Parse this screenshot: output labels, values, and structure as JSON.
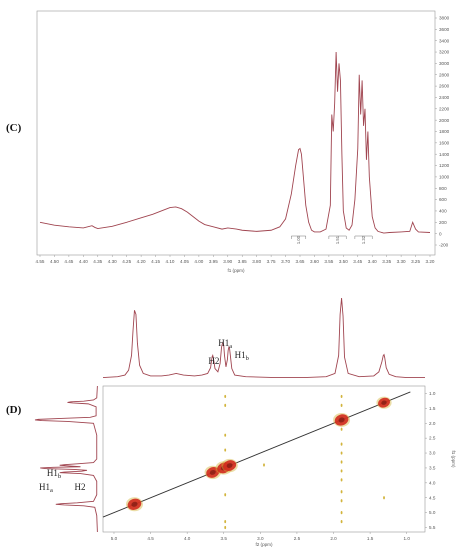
{
  "panels": {
    "c_label": "(C)",
    "d_label": "(D)"
  },
  "colors": {
    "spectrum": "#a04550",
    "axis": "#9a9a9a",
    "diag_line": "#333333",
    "peak_fill": "#d22a1e",
    "peak_edge": "#7a1a12",
    "cross_peak": "#d2b43c"
  },
  "chart_data": [
    {
      "type": "line",
      "title": "",
      "xlabel": "f1 (ppm)",
      "ylabel": "",
      "xlim": [
        4.55,
        3.2
      ],
      "ylim": [
        -200,
        3800
      ],
      "x_reversed": true,
      "x_ticks": [
        4.55,
        4.5,
        4.45,
        4.4,
        4.35,
        4.3,
        4.25,
        4.2,
        4.15,
        4.1,
        4.05,
        4.0,
        3.95,
        3.9,
        3.85,
        3.8,
        3.75,
        3.7,
        3.65,
        3.6,
        3.55,
        3.5,
        3.45,
        3.4,
        3.35,
        3.3,
        3.25,
        3.2
      ],
      "y_ticks": [
        -200,
        0,
        200,
        400,
        600,
        800,
        1000,
        1200,
        1400,
        1600,
        1800,
        2000,
        2200,
        2400,
        2600,
        2800,
        3000,
        3200,
        3400,
        3600,
        3800
      ],
      "series": [
        {
          "x": [
            4.55,
            4.5,
            4.45,
            4.4,
            4.37,
            4.36,
            4.35,
            4.3,
            4.25,
            4.2,
            4.16,
            4.14,
            4.12,
            4.1,
            4.08,
            4.06,
            4.04,
            4.02,
            4.0,
            3.98,
            3.95,
            3.92,
            3.9,
            3.87,
            3.85,
            3.8,
            3.75,
            3.72,
            3.7,
            3.68,
            3.665,
            3.655,
            3.65,
            3.645,
            3.64,
            3.635,
            3.63,
            3.62,
            3.61,
            3.6,
            3.58,
            3.56,
            3.545,
            3.54,
            3.535,
            3.53,
            3.525,
            3.52,
            3.515,
            3.51,
            3.505,
            3.5,
            3.49,
            3.48,
            3.47,
            3.46,
            3.45,
            3.445,
            3.44,
            3.435,
            3.43,
            3.425,
            3.42,
            3.415,
            3.41,
            3.4,
            3.39,
            3.38,
            3.36,
            3.34,
            3.3,
            3.27,
            3.26,
            3.25,
            3.24,
            3.2
          ],
          "y": [
            200,
            150,
            120,
            100,
            140,
            110,
            90,
            130,
            200,
            280,
            340,
            380,
            420,
            460,
            470,
            440,
            380,
            300,
            220,
            160,
            120,
            80,
            100,
            80,
            60,
            40,
            60,
            120,
            260,
            700,
            1200,
            1480,
            1500,
            1400,
            1100,
            800,
            500,
            200,
            60,
            30,
            30,
            80,
            500,
            2100,
            1800,
            2300,
            3200,
            2500,
            3000,
            2700,
            1400,
            400,
            100,
            60,
            150,
            600,
            1500,
            2800,
            2100,
            2700,
            1900,
            2200,
            1300,
            1800,
            1000,
            300,
            100,
            40,
            10,
            20,
            30,
            40,
            200,
            80,
            30,
            20
          ]
        }
      ],
      "integrals": [
        {
          "label": "1.00",
          "x_from": 3.68,
          "x_to": 3.63
        },
        {
          "label": "1.51",
          "x_from": 3.55,
          "x_to": 3.49
        },
        {
          "label": "1.32",
          "x_from": 3.46,
          "x_to": 3.4
        }
      ],
      "grid": false,
      "legend": "none"
    },
    {
      "type": "heatmap",
      "title": "",
      "xlabel": "f2 (ppm)",
      "ylabel": "f1 (ppm)",
      "xlim": [
        5.15,
        0.75
      ],
      "ylim": [
        0.75,
        5.65
      ],
      "x_ticks": [
        5.0,
        4.5,
        4.0,
        3.5,
        3.0,
        2.5,
        2.0,
        1.5,
        1.0
      ],
      "x_tick_labels": [
        "5.0",
        "4.5",
        "4.0",
        "3.5",
        "3.0",
        "2.5",
        "2.0",
        "1.5",
        "1.0"
      ],
      "y_ticks": [
        1.0,
        1.5,
        2.0,
        2.5,
        3.0,
        3.5,
        4.0,
        4.5,
        5.0,
        5.5
      ],
      "y_tick_labels": [
        "1.0",
        "1.5",
        "2.0",
        "2.5",
        "3.0",
        "3.5",
        "4.0",
        "4.5",
        "5.0",
        "5.5"
      ],
      "diagonal_peaks": [
        {
          "f2": 4.72,
          "f1": 4.72,
          "intensity": 1.0
        },
        {
          "f2": 3.65,
          "f1": 3.65,
          "intensity": 0.9
        },
        {
          "f2": 3.5,
          "f1": 3.5,
          "intensity": 0.9
        },
        {
          "f2": 3.42,
          "f1": 3.42,
          "intensity": 0.9
        },
        {
          "f2": 1.89,
          "f1": 1.89,
          "intensity": 1.0
        },
        {
          "f2": 1.31,
          "f1": 1.31,
          "intensity": 0.7
        }
      ],
      "cross_peaks": [
        {
          "f2": 3.48,
          "f1": 1.1
        },
        {
          "f2": 3.48,
          "f1": 1.4
        },
        {
          "f2": 3.48,
          "f1": 2.4
        },
        {
          "f2": 3.48,
          "f1": 2.9
        },
        {
          "f2": 3.48,
          "f1": 4.4
        },
        {
          "f2": 3.48,
          "f1": 5.3
        },
        {
          "f2": 3.48,
          "f1": 5.5
        },
        {
          "f2": 2.95,
          "f1": 3.4
        },
        {
          "f2": 1.89,
          "f1": 1.1
        },
        {
          "f2": 1.89,
          "f1": 1.4
        },
        {
          "f2": 1.89,
          "f1": 2.2
        },
        {
          "f2": 1.89,
          "f1": 2.7
        },
        {
          "f2": 1.89,
          "f1": 3.0
        },
        {
          "f2": 1.89,
          "f1": 3.3
        },
        {
          "f2": 1.89,
          "f1": 3.6
        },
        {
          "f2": 1.89,
          "f1": 3.9
        },
        {
          "f2": 1.89,
          "f1": 4.3
        },
        {
          "f2": 1.89,
          "f1": 4.6
        },
        {
          "f2": 1.89,
          "f1": 5.0
        },
        {
          "f2": 1.89,
          "f1": 5.3
        },
        {
          "f2": 1.31,
          "f1": 4.5
        }
      ],
      "projection_top": {
        "x": [
          5.15,
          4.95,
          4.85,
          4.8,
          4.76,
          4.74,
          4.72,
          4.7,
          4.68,
          4.65,
          4.6,
          4.5,
          4.35,
          4.25,
          4.15,
          4.05,
          3.9,
          3.8,
          3.72,
          3.68,
          3.66,
          3.65,
          3.64,
          3.62,
          3.58,
          3.55,
          3.53,
          3.52,
          3.51,
          3.5,
          3.49,
          3.47,
          3.45,
          3.44,
          3.43,
          3.42,
          3.41,
          3.39,
          3.35,
          3.2,
          2.8,
          2.4,
          2.1,
          1.98,
          1.93,
          1.91,
          1.89,
          1.87,
          1.85,
          1.8,
          1.65,
          1.45,
          1.38,
          1.34,
          1.32,
          1.31,
          1.3,
          1.28,
          1.24,
          1.15,
          1.0,
          0.75
        ],
        "y": [
          0.03,
          0.04,
          0.06,
          0.12,
          0.3,
          0.6,
          0.85,
          0.8,
          0.45,
          0.18,
          0.08,
          0.05,
          0.05,
          0.06,
          0.08,
          0.06,
          0.05,
          0.06,
          0.08,
          0.15,
          0.28,
          0.3,
          0.26,
          0.14,
          0.1,
          0.2,
          0.4,
          0.44,
          0.46,
          0.42,
          0.3,
          0.16,
          0.25,
          0.36,
          0.4,
          0.38,
          0.3,
          0.14,
          0.06,
          0.04,
          0.03,
          0.03,
          0.04,
          0.08,
          0.3,
          0.8,
          1.0,
          0.78,
          0.28,
          0.08,
          0.04,
          0.05,
          0.1,
          0.22,
          0.3,
          0.31,
          0.27,
          0.15,
          0.07,
          0.04,
          0.03,
          0.03
        ]
      },
      "projection_left": {
        "f1": [
          0.75,
          1.15,
          1.22,
          1.26,
          1.28,
          1.3,
          1.32,
          1.35,
          1.45,
          1.75,
          1.8,
          1.84,
          1.87,
          1.89,
          1.91,
          1.94,
          2.0,
          2.4,
          3.2,
          3.32,
          3.36,
          3.39,
          3.41,
          3.43,
          3.46,
          3.48,
          3.5,
          3.52,
          3.55,
          3.58,
          3.61,
          3.64,
          3.66,
          3.69,
          3.75,
          3.95,
          4.4,
          4.62,
          4.67,
          4.7,
          4.72,
          4.74,
          4.77,
          4.82,
          5.1,
          5.65
        ],
        "v": [
          0.04,
          0.05,
          0.1,
          0.25,
          0.45,
          0.5,
          0.42,
          0.18,
          0.06,
          0.06,
          0.15,
          0.6,
          0.95,
          1.0,
          0.9,
          0.5,
          0.1,
          0.05,
          0.05,
          0.1,
          0.35,
          0.55,
          0.62,
          0.5,
          0.3,
          0.72,
          0.92,
          0.85,
          0.4,
          0.2,
          0.28,
          0.55,
          0.62,
          0.3,
          0.1,
          0.05,
          0.05,
          0.1,
          0.35,
          0.6,
          0.68,
          0.55,
          0.25,
          0.08,
          0.05,
          0.04
        ]
      },
      "peak_labels_top": [
        {
          "base": "H2",
          "sub": "",
          "x": 3.58
        },
        {
          "base": "H1",
          "sub": "a",
          "x": 3.48
        },
        {
          "base": "H1",
          "sub": "b",
          "x": 3.35
        }
      ],
      "peak_labels_left": [
        {
          "base": "H1",
          "sub": "b",
          "f1": 3.3
        },
        {
          "base": "H1",
          "sub": "a",
          "f1": 3.62
        },
        {
          "base": "H2",
          "sub": "",
          "f1": 3.62
        }
      ]
    }
  ]
}
